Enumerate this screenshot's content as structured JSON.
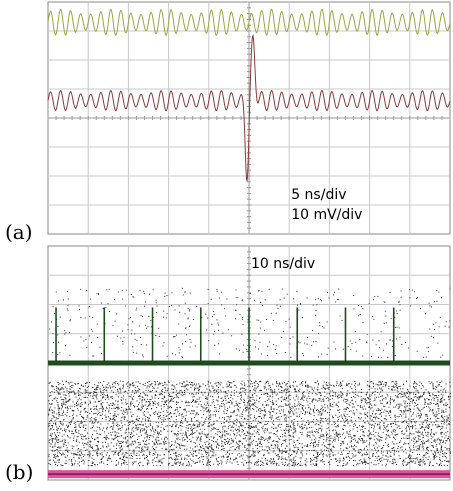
{
  "panels": {
    "a": {
      "label": "(a)"
    },
    "b": {
      "label": "(b)"
    }
  },
  "chart_data": [
    {
      "panel": "(a)",
      "type": "line",
      "grid": true,
      "divisions": {
        "x": 10,
        "y": 8
      },
      "annotations": [
        "5 ns/div",
        "10 mV/div"
      ],
      "series": [
        {
          "color": "#9aa642",
          "description_level_div": 7.3,
          "amplitude_div": 0.45,
          "period_div": 0.25
        },
        {
          "color": "#8a3a3a",
          "description_level_div": 4.6,
          "amplitude_div": 0.35,
          "period_div": 0.25,
          "pulse": {
            "x_div": 5.0,
            "peak_div": 2.1,
            "trough_div": -2.6
          }
        }
      ]
    },
    {
      "panel": "(b)",
      "type": "scatter",
      "grid": true,
      "divisions": {
        "x": 10,
        "y": 8
      },
      "annotations": [
        "10 ns/div"
      ],
      "series": [
        {
          "color": "#1e4a1e",
          "baseline_div": 4.0,
          "spike_x_div": [
            0.2,
            1.4,
            2.6,
            3.8,
            5.0,
            6.2,
            7.4,
            8.6
          ],
          "spike_height_div": 1.9
        },
        {
          "color": "#e0509a",
          "baseline_div": 0.2
        }
      ]
    }
  ]
}
